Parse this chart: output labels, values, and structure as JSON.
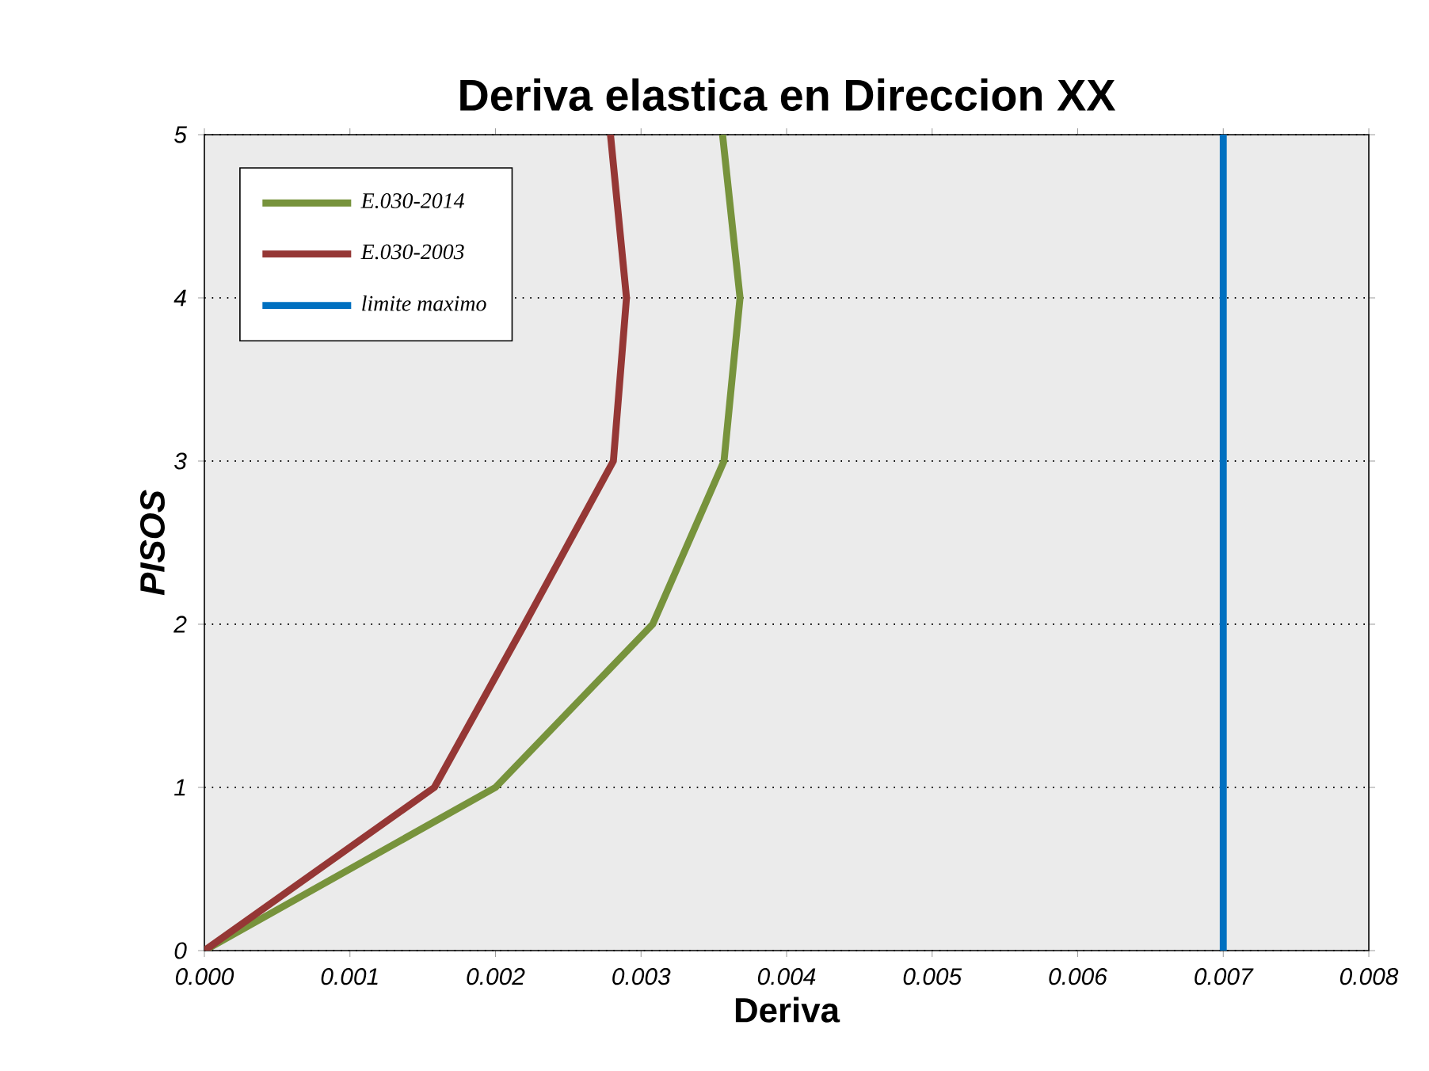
{
  "chart_data": {
    "type": "line",
    "title": "Deriva elastica en Direccion XX",
    "xlabel": "Deriva",
    "ylabel": "PISOS",
    "series": [
      {
        "name": "E.030-2014",
        "color": "#77933c",
        "x": [
          0,
          0.002,
          0.00308,
          0.00357,
          0.00368,
          0.00356
        ],
        "values": [
          0,
          1,
          2,
          3,
          4,
          5
        ]
      },
      {
        "name": "E.030-2003",
        "color": "#953735",
        "x": [
          0,
          0.00158,
          0.0022,
          0.00281,
          0.0029,
          0.00279
        ],
        "values": [
          0,
          1,
          2,
          3,
          4,
          5
        ]
      },
      {
        "name": "limite maximo",
        "color": "#0070c0",
        "x": [
          0.007,
          0.007
        ],
        "values": [
          0,
          5
        ]
      }
    ],
    "xlim": [
      0,
      0.008
    ],
    "ylim": [
      0,
      5
    ],
    "xticks": [
      {
        "value": 0,
        "label": "0.000"
      },
      {
        "value": 0.001,
        "label": "0.001"
      },
      {
        "value": 0.002,
        "label": "0.002"
      },
      {
        "value": 0.003,
        "label": "0.003"
      },
      {
        "value": 0.004,
        "label": "0.004"
      },
      {
        "value": 0.005,
        "label": "0.005"
      },
      {
        "value": 0.006,
        "label": "0.006"
      },
      {
        "value": 0.007,
        "label": "0.007"
      },
      {
        "value": 0.008,
        "label": "0.008"
      }
    ],
    "yticks": [
      0,
      1,
      2,
      3,
      4,
      5
    ],
    "grid": "y",
    "legend": "top left",
    "marker": "none",
    "line_style": "solid"
  }
}
